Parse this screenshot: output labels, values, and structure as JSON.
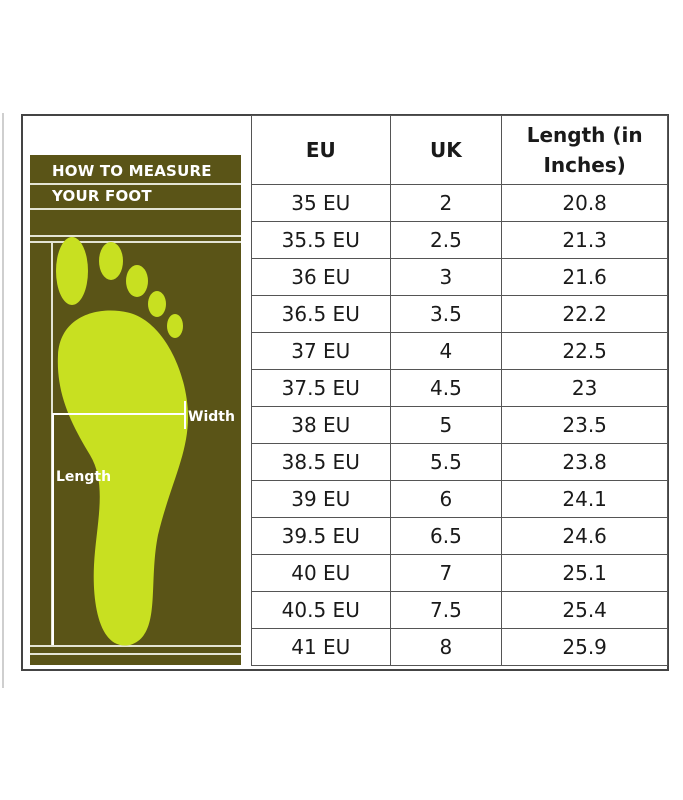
{
  "guide": {
    "title_line1": "HOW TO MEASURE",
    "title_line2": "YOUR FOOT",
    "width_label": "Width",
    "length_label": "Length"
  },
  "table": {
    "headers": {
      "eu": "EU",
      "uk": "UK",
      "length_line1": "Length (in",
      "length_line2": "Inches)"
    },
    "rows": [
      {
        "eu": "35 EU",
        "uk": "2",
        "length": "20.8"
      },
      {
        "eu": "35.5 EU",
        "uk": "2.5",
        "length": "21.3"
      },
      {
        "eu": "36 EU",
        "uk": "3",
        "length": "21.6"
      },
      {
        "eu": "36.5 EU",
        "uk": "3.5",
        "length": "22.2"
      },
      {
        "eu": "37 EU",
        "uk": "4",
        "length": "22.5"
      },
      {
        "eu": "37.5 EU",
        "uk": "4.5",
        "length": "23"
      },
      {
        "eu": "38 EU",
        "uk": "5",
        "length": "23.5"
      },
      {
        "eu": "38.5 EU",
        "uk": "5.5",
        "length": "23.8"
      },
      {
        "eu": "39 EU",
        "uk": "6",
        "length": "24.1"
      },
      {
        "eu": "39.5 EU",
        "uk": "6.5",
        "length": "24.6"
      },
      {
        "eu": "40 EU",
        "uk": "7",
        "length": "25.1"
      },
      {
        "eu": "40.5 EU",
        "uk": "7.5",
        "length": "25.4"
      },
      {
        "eu": "41 EU",
        "uk": "8",
        "length": "25.9"
      }
    ]
  },
  "colors": {
    "panel_bg": "#5a5417",
    "foot": "#c8e021",
    "border": "#555555"
  },
  "icons": {
    "foot": "footprint-icon"
  }
}
